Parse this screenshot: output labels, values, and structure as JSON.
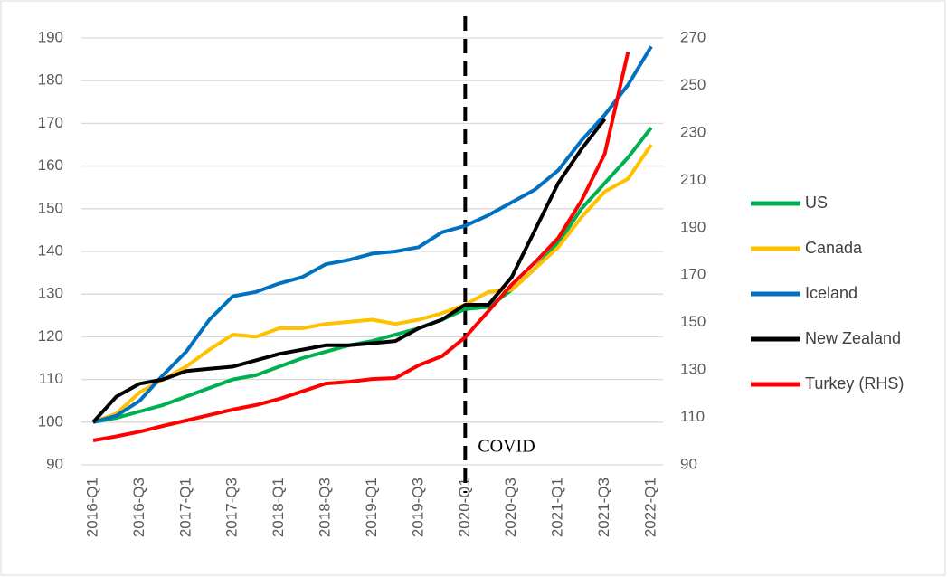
{
  "chart_data": {
    "type": "line",
    "categories": [
      "2016-Q1",
      null,
      "2016-Q3",
      null,
      "2017-Q1",
      null,
      "2017-Q3",
      null,
      "2018-Q1",
      null,
      "2018-Q3",
      null,
      "2019-Q1",
      null,
      "2019-Q3",
      null,
      "2020-Q1",
      null,
      "2020-Q3",
      null,
      "2021-Q1",
      null,
      "2021-Q3",
      null,
      "2022-Q1"
    ],
    "series": [
      {
        "name": "US",
        "color": "#00b050",
        "values": [
          100,
          101,
          102.5,
          104,
          106,
          108,
          110,
          111,
          113,
          115,
          116.5,
          118,
          119,
          120.5,
          122,
          124,
          126.5,
          127,
          131,
          136,
          142,
          150,
          156,
          162,
          169
        ]
      },
      {
        "name": "Canada",
        "color": "#ffc000",
        "values": [
          100,
          102,
          107,
          110,
          113,
          117,
          120.5,
          120,
          122,
          122,
          123,
          123.5,
          124,
          123,
          124,
          125.5,
          127.5,
          130.5,
          131,
          136,
          141,
          148,
          154,
          157,
          165
        ]
      },
      {
        "name": "Iceland",
        "color": "#0070c0",
        "values": [
          100,
          101.5,
          105,
          111,
          116.5,
          124,
          129.5,
          130.5,
          132.5,
          134,
          137,
          138,
          139.5,
          140,
          141,
          144.5,
          146,
          148.5,
          151.5,
          154.5,
          159,
          166,
          172,
          179,
          188
        ]
      },
      {
        "name": "New Zealand",
        "color": "#000000",
        "values": [
          100,
          106,
          109,
          110,
          112,
          112.5,
          113,
          114.5,
          116,
          117,
          118,
          118,
          118.5,
          119,
          122,
          124,
          127.5,
          127.5,
          134,
          145,
          156,
          164,
          171,
          null,
          null
        ]
      },
      {
        "name": "Turkey (RHS)",
        "color": "#ff0000",
        "axis": "y2",
        "values": [
          100.3,
          102,
          104,
          106.4,
          108.7,
          111,
          113.3,
          115.2,
          117.8,
          121,
          124.3,
          125,
          126.2,
          126.6,
          132,
          135.8,
          143.8,
          154.8,
          166,
          175.4,
          185.7,
          201.4,
          221.2,
          264,
          null
        ]
      }
    ],
    "ylim": [
      90,
      190
    ],
    "yticks": [
      90,
      100,
      110,
      120,
      130,
      140,
      150,
      160,
      170,
      180,
      190
    ],
    "y2lim": [
      90,
      270
    ],
    "y2ticks": [
      90,
      110,
      130,
      150,
      170,
      190,
      210,
      230,
      250,
      270
    ],
    "grid": true,
    "legend": "right",
    "annotations": [
      {
        "text": "COVID",
        "x": "2020-Q1"
      }
    ]
  }
}
